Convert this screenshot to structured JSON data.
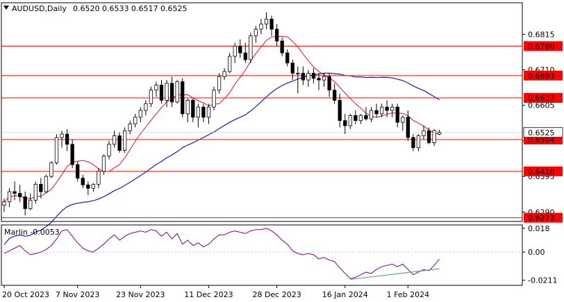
{
  "header": {
    "symbol": "AUDUSD,Daily",
    "ohlc": "0.6520 0.6533 0.6517 0.6525"
  },
  "indicator": {
    "label": "Marlin -0.0053"
  },
  "colors": {
    "bull_candle": "#ffffff",
    "bear_candle": "#000000",
    "level_line": "#ff0000",
    "ma_fast": "#e0101e",
    "ma_slow": "#1020c0",
    "marlin_line": "#800080",
    "marlin_trend": "#5f9ea0",
    "price_tag_bg": "#ffffff"
  },
  "chart_data": [
    {
      "type": "candlestick",
      "title": "AUDUSD,Daily",
      "y_ticks": [
        "0.6815",
        "0.6710",
        "0.6605",
        "0.6500",
        "0.6395",
        "0.6290"
      ],
      "ylim": [
        0.6262,
        0.6908
      ],
      "x_ticks": [
        "20 Oct 2023",
        "7 Nov 2023",
        "23 Nov 2023",
        "11 Dec 2023",
        "28 Dec 2023",
        "16 Jan 2024",
        "1 Feb 2024"
      ],
      "levels": [
        "0.6780",
        "0.6693",
        "0.6627",
        "0.6504",
        "0.6410",
        "0.6273"
      ],
      "last_price": "0.6525",
      "candles": [
        [
          0.631,
          0.633,
          0.629,
          0.632
        ],
        [
          0.632,
          0.636,
          0.6305,
          0.635
        ],
        [
          0.635,
          0.638,
          0.6325,
          0.6345
        ],
        [
          0.6345,
          0.637,
          0.632,
          0.6335
        ],
        [
          0.6335,
          0.635,
          0.628,
          0.63
        ],
        [
          0.63,
          0.6345,
          0.6295,
          0.6325
        ],
        [
          0.6325,
          0.638,
          0.6315,
          0.6372
        ],
        [
          0.6372,
          0.639,
          0.633,
          0.635
        ],
        [
          0.635,
          0.64,
          0.6345,
          0.6395
        ],
        [
          0.6395,
          0.644,
          0.639,
          0.6435
        ],
        [
          0.6435,
          0.652,
          0.643,
          0.651
        ],
        [
          0.651,
          0.653,
          0.648,
          0.652
        ],
        [
          0.652,
          0.6535,
          0.647,
          0.649
        ],
        [
          0.649,
          0.6505,
          0.642,
          0.643
        ],
        [
          0.643,
          0.644,
          0.638,
          0.639
        ],
        [
          0.639,
          0.64,
          0.636,
          0.637
        ],
        [
          0.637,
          0.638,
          0.634,
          0.636
        ],
        [
          0.636,
          0.6375,
          0.635,
          0.6372
        ],
        [
          0.6372,
          0.642,
          0.636,
          0.641
        ],
        [
          0.641,
          0.646,
          0.64,
          0.6455
        ],
        [
          0.6455,
          0.65,
          0.6445,
          0.649
        ],
        [
          0.649,
          0.653,
          0.648,
          0.6515
        ],
        [
          0.6515,
          0.6525,
          0.6465,
          0.6472
        ],
        [
          0.6472,
          0.654,
          0.6465,
          0.653
        ],
        [
          0.653,
          0.656,
          0.652,
          0.655
        ],
        [
          0.655,
          0.658,
          0.654,
          0.657
        ],
        [
          0.657,
          0.66,
          0.6555,
          0.659
        ],
        [
          0.659,
          0.662,
          0.6575,
          0.661
        ],
        [
          0.661,
          0.666,
          0.66,
          0.665
        ],
        [
          0.665,
          0.6675,
          0.663,
          0.6665
        ],
        [
          0.6665,
          0.668,
          0.661,
          0.662
        ],
        [
          0.662,
          0.668,
          0.66,
          0.667
        ],
        [
          0.667,
          0.669,
          0.66,
          0.6615
        ],
        [
          0.6615,
          0.668,
          0.661,
          0.6675
        ],
        [
          0.6675,
          0.6685,
          0.657,
          0.658
        ],
        [
          0.658,
          0.6625,
          0.6555,
          0.662
        ],
        [
          0.662,
          0.6625,
          0.6555,
          0.657
        ],
        [
          0.657,
          0.661,
          0.654,
          0.66
        ],
        [
          0.66,
          0.661,
          0.6555,
          0.657
        ],
        [
          0.657,
          0.661,
          0.655,
          0.66
        ],
        [
          0.66,
          0.666,
          0.659,
          0.665
        ],
        [
          0.665,
          0.67,
          0.664,
          0.669
        ],
        [
          0.669,
          0.6715,
          0.668,
          0.6705
        ],
        [
          0.6705,
          0.676,
          0.67,
          0.675
        ],
        [
          0.675,
          0.679,
          0.673,
          0.678
        ],
        [
          0.678,
          0.68,
          0.6745,
          0.676
        ],
        [
          0.676,
          0.679,
          0.673,
          0.674
        ],
        [
          0.674,
          0.682,
          0.673,
          0.681
        ],
        [
          0.681,
          0.684,
          0.679,
          0.683
        ],
        [
          0.683,
          0.686,
          0.6815,
          0.6845
        ],
        [
          0.6845,
          0.688,
          0.683,
          0.686
        ],
        [
          0.686,
          0.687,
          0.681,
          0.683
        ],
        [
          0.683,
          0.6845,
          0.678,
          0.6795
        ],
        [
          0.6795,
          0.6805,
          0.675,
          0.676
        ],
        [
          0.676,
          0.677,
          0.672,
          0.673
        ],
        [
          0.673,
          0.674,
          0.668,
          0.67
        ],
        [
          0.67,
          0.672,
          0.664,
          0.67
        ],
        [
          0.67,
          0.672,
          0.6665,
          0.668
        ],
        [
          0.668,
          0.671,
          0.666,
          0.67
        ],
        [
          0.67,
          0.6715,
          0.667,
          0.6685
        ],
        [
          0.6685,
          0.67,
          0.665,
          0.668
        ],
        [
          0.668,
          0.67,
          0.666,
          0.669
        ],
        [
          0.669,
          0.67,
          0.663,
          0.665
        ],
        [
          0.665,
          0.667,
          0.661,
          0.662
        ],
        [
          0.662,
          0.664,
          0.654,
          0.656
        ],
        [
          0.656,
          0.658,
          0.652,
          0.6545
        ],
        [
          0.6545,
          0.658,
          0.6535,
          0.6575
        ],
        [
          0.6575,
          0.659,
          0.655,
          0.656
        ],
        [
          0.656,
          0.658,
          0.655,
          0.6575
        ],
        [
          0.6575,
          0.66,
          0.656,
          0.6565
        ],
        [
          0.6565,
          0.66,
          0.6555,
          0.659
        ],
        [
          0.659,
          0.661,
          0.657,
          0.658
        ],
        [
          0.658,
          0.661,
          0.657,
          0.66
        ],
        [
          0.66,
          0.662,
          0.657,
          0.659
        ],
        [
          0.659,
          0.661,
          0.657,
          0.66
        ],
        [
          0.66,
          0.661,
          0.654,
          0.6555
        ],
        [
          0.6555,
          0.6575,
          0.653,
          0.657
        ],
        [
          0.657,
          0.659,
          0.65,
          0.651
        ],
        [
          0.651,
          0.652,
          0.647,
          0.648
        ],
        [
          0.648,
          0.652,
          0.647,
          0.6515
        ],
        [
          0.6515,
          0.6545,
          0.6505,
          0.653
        ],
        [
          0.653,
          0.654,
          0.649,
          0.6495
        ],
        [
          0.6495,
          0.6535,
          0.6485,
          0.653
        ],
        [
          0.652,
          0.6533,
          0.6517,
          0.6525
        ]
      ]
    },
    {
      "type": "line",
      "title": "Marlin -0.0053",
      "y_ticks": [
        "0.018",
        "0.00",
        "-0.0211"
      ],
      "ylim": [
        -0.025,
        0.0205
      ],
      "series": [
        {
          "values": [
            -0.001,
            0.001,
            0.003,
            0.005,
            0.001,
            -0.002,
            -0.001,
            0.0,
            0.002,
            0.005,
            0.01,
            0.016,
            0.017,
            0.012,
            0.007,
            0.003,
            0.001,
            0.0,
            0.003,
            0.006,
            0.01,
            0.013,
            0.009,
            0.012,
            0.014,
            0.015,
            0.016,
            0.015,
            0.017,
            0.016,
            0.012,
            0.015,
            0.01,
            0.014,
            0.006,
            0.009,
            0.005,
            0.007,
            0.004,
            0.006,
            0.01,
            0.013,
            0.013,
            0.015,
            0.016,
            0.015,
            0.014,
            0.016,
            0.017,
            0.017,
            0.018,
            0.016,
            0.013,
            0.009,
            0.006,
            0.001,
            -0.001,
            -0.002,
            -0.001,
            -0.002,
            -0.005,
            -0.004,
            -0.006,
            -0.007,
            -0.012,
            -0.016,
            -0.02,
            -0.019,
            -0.017,
            -0.015,
            -0.016,
            -0.013,
            -0.011,
            -0.01,
            -0.009,
            -0.011,
            -0.009,
            -0.013,
            -0.017,
            -0.015,
            -0.013,
            -0.014,
            -0.01,
            -0.0053
          ]
        },
        {
          "x": [
            66,
            83
          ],
          "values": [
            -0.0205,
            -0.0125
          ]
        }
      ]
    }
  ]
}
